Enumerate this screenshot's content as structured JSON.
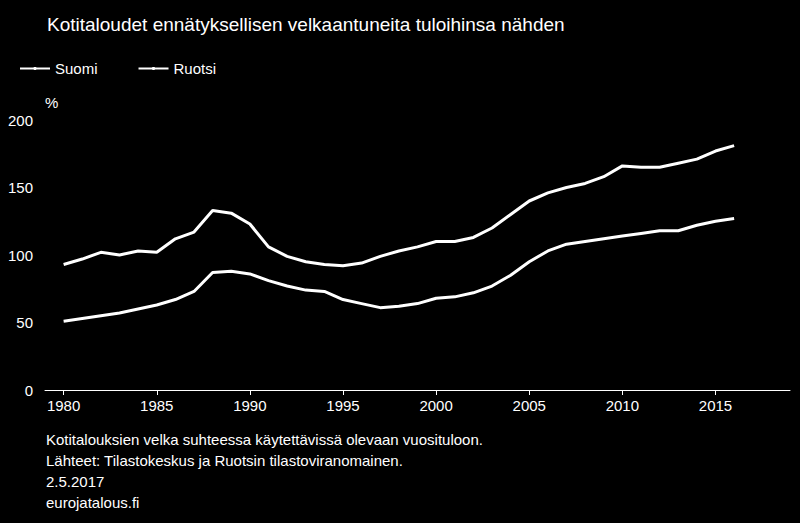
{
  "chart_data": {
    "type": "line",
    "title": "Kotitaloudet ennätyksellisen velkaantuneita tuloihinsa nähden",
    "y_label": "%",
    "annotations": [
      "Kotitalouksien velka suhteessa käytettävissä olevaan vuosituloon.",
      "Lähteet: Tilastokeskus ja Ruotsin tilastoviranomainen.",
      "2.5.2017",
      "eurojatalous.fi"
    ],
    "x": [
      1980,
      1981,
      1982,
      1983,
      1984,
      1985,
      1986,
      1987,
      1988,
      1989,
      1990,
      1991,
      1992,
      1993,
      1994,
      1995,
      1996,
      1997,
      1998,
      1999,
      2000,
      2001,
      2002,
      2003,
      2004,
      2005,
      2006,
      2007,
      2008,
      2009,
      2010,
      2011,
      2012,
      2013,
      2014,
      2015,
      2016
    ],
    "series": [
      {
        "name": "Suomi",
        "color": "#ffffff",
        "values": [
          51,
          53,
          55,
          57,
          60,
          63,
          67,
          73,
          87,
          88,
          86,
          81,
          77,
          74,
          73,
          67,
          64,
          61,
          62,
          64,
          68,
          69,
          72,
          77,
          85,
          95,
          103,
          108,
          110,
          112,
          114,
          116,
          118,
          118,
          122,
          125,
          127
        ]
      },
      {
        "name": "Ruotsi",
        "color": "#ffffff",
        "values": [
          93,
          97,
          102,
          100,
          103,
          102,
          112,
          117,
          133,
          131,
          123,
          106,
          99,
          95,
          93,
          92,
          94,
          99,
          103,
          106,
          110,
          110,
          113,
          120,
          130,
          140,
          146,
          150,
          153,
          158,
          166,
          165,
          165,
          168,
          171,
          177,
          181
        ]
      }
    ],
    "xlim": [
      1979,
      2019
    ],
    "xticks": [
      1980,
      1985,
      1990,
      1995,
      2000,
      2005,
      2010,
      2015
    ],
    "ylim": [
      0,
      200
    ],
    "yticks": [
      0,
      50,
      100,
      150,
      200
    ],
    "grid": false,
    "legend": "top-left"
  }
}
